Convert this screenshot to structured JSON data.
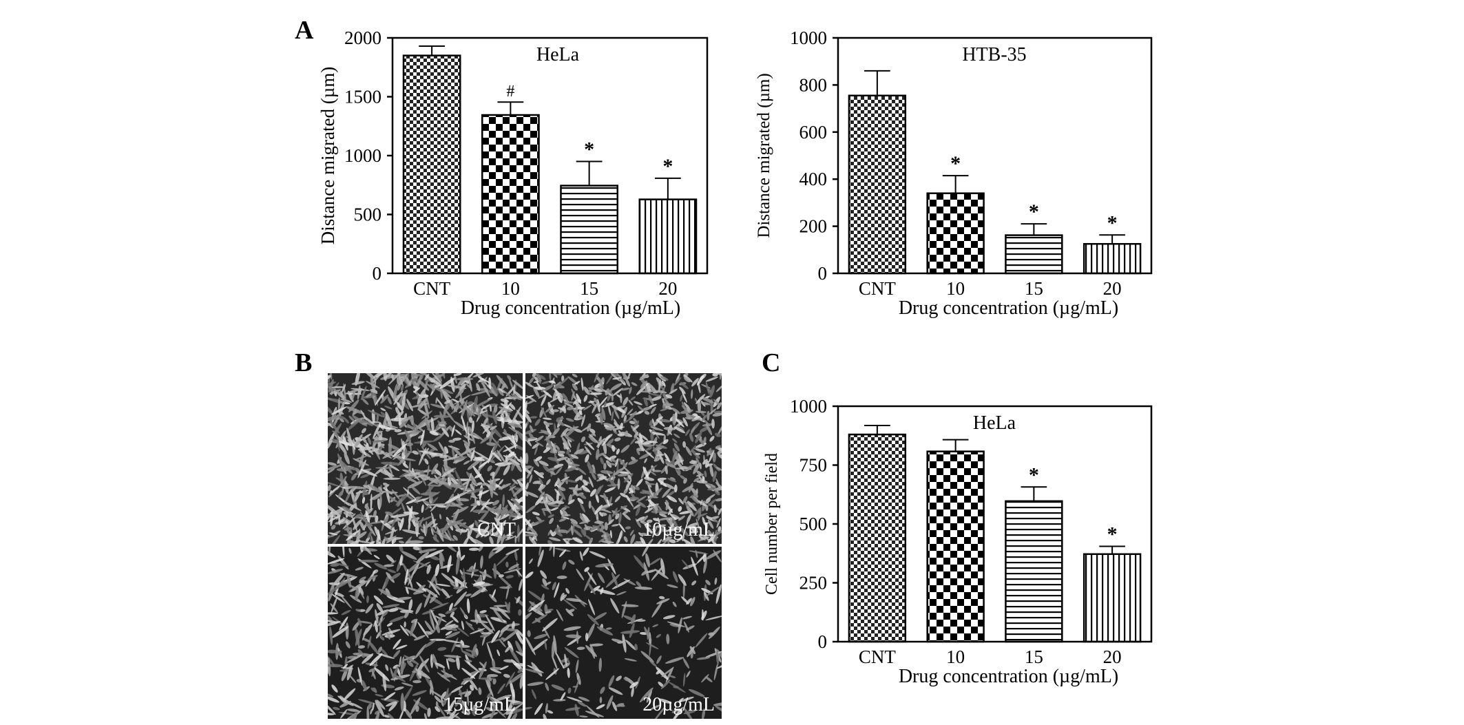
{
  "panels": {
    "a": "A",
    "b": "B",
    "c": "C"
  },
  "chart_data": [
    {
      "type": "bar",
      "title": "HeLa",
      "xlabel": "Drug concentration (µg/mL)",
      "ylabel": "Distance migrated (µm)",
      "categories": [
        "CNT",
        "10",
        "15",
        "20"
      ],
      "values": [
        1850,
        1345,
        745,
        628
      ],
      "errors": [
        80,
        110,
        205,
        180
      ],
      "annotations": [
        "",
        "#",
        "*",
        "*"
      ],
      "ylim": [
        0,
        2000
      ],
      "yticks": [
        "0",
        "500",
        "1000",
        "1500",
        "2000"
      ],
      "patterns": [
        "fine-check",
        "coarse-check",
        "horizontal-lines",
        "vertical-lines"
      ]
    },
    {
      "type": "bar",
      "title": "HTB-35",
      "xlabel": "Drug concentration (µg/mL)",
      "ylabel": "Distance migrated (µm)",
      "categories": [
        "CNT",
        "10",
        "15",
        "20"
      ],
      "values": [
        755,
        340,
        162,
        125
      ],
      "errors": [
        105,
        75,
        48,
        38
      ],
      "annotations": [
        "",
        "*",
        "*",
        "*"
      ],
      "ylim": [
        0,
        1000
      ],
      "yticks": [
        "0",
        "200",
        "400",
        "600",
        "800",
        "1000"
      ],
      "patterns": [
        "fine-check",
        "coarse-check",
        "horizontal-lines",
        "vertical-lines"
      ]
    },
    {
      "type": "bar",
      "title": "HeLa",
      "xlabel": "Drug concentration (µg/mL)",
      "ylabel": "Cell number per field",
      "categories": [
        "CNT",
        "10",
        "15",
        "20"
      ],
      "values": [
        880,
        808,
        597,
        372
      ],
      "errors": [
        38,
        50,
        60,
        33
      ],
      "annotations": [
        "",
        "",
        "*",
        "*"
      ],
      "ylim": [
        0,
        1000
      ],
      "yticks": [
        "0",
        "250",
        "500",
        "750",
        "1000"
      ],
      "patterns": [
        "fine-check",
        "coarse-check",
        "horizontal-lines",
        "vertical-lines"
      ]
    }
  ],
  "micrographs": [
    {
      "label": "CNT",
      "density": "high"
    },
    {
      "label": "10µg/mL",
      "density": "high"
    },
    {
      "label": "15µg/mL",
      "density": "medium"
    },
    {
      "label": "20µg/mL",
      "density": "low"
    }
  ]
}
